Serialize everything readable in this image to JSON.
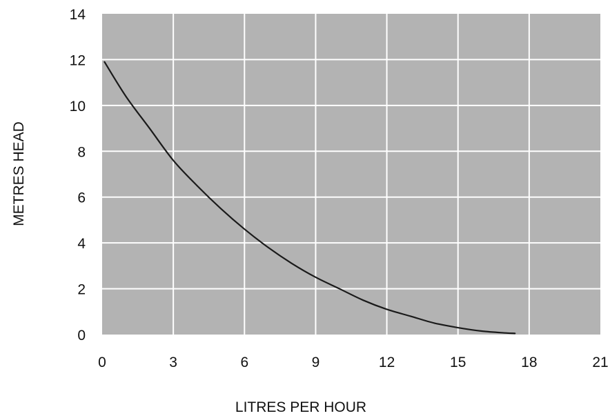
{
  "chart_data": {
    "type": "line",
    "title": "",
    "xlabel": "LITRES PER HOUR",
    "ylabel": "METRES HEAD",
    "xlim": [
      0,
      21
    ],
    "ylim": [
      0,
      14
    ],
    "xticks": [
      "0",
      "3",
      "6",
      "9",
      "12",
      "15",
      "18",
      "21"
    ],
    "yticks": [
      "0",
      "2",
      "4",
      "6",
      "8",
      "10",
      "12",
      "14"
    ],
    "grid": true,
    "legend": "none",
    "colors": {
      "plot_background": "#b3b3b3",
      "grid": "#ffffff",
      "line": "#1a1a1a"
    },
    "series": [
      {
        "x": [
          0.1,
          1,
          2,
          3,
          4,
          5,
          6,
          7,
          8,
          9,
          10,
          11,
          12,
          13,
          14,
          15,
          16,
          17,
          17.4
        ],
        "values": [
          11.9,
          10.4,
          9.0,
          7.6,
          6.5,
          5.5,
          4.6,
          3.8,
          3.1,
          2.5,
          2.0,
          1.5,
          1.1,
          0.8,
          0.5,
          0.3,
          0.15,
          0.07,
          0.05
        ]
      }
    ]
  }
}
